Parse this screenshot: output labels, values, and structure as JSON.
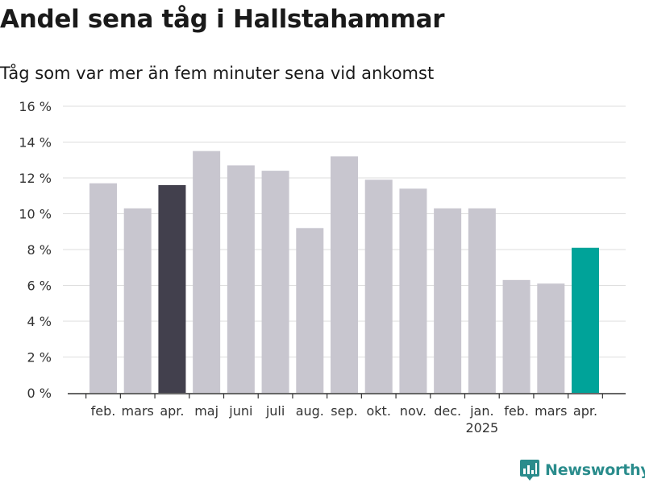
{
  "chart_data": {
    "type": "bar",
    "title": "Andel sena tåg i Hallstahammar",
    "subtitle": "Tåg som var mer än fem minuter sena vid ankomst",
    "xlabel": "",
    "ylabel": "",
    "categories": [
      "feb.",
      "mars",
      "apr.",
      "maj",
      "juni",
      "juli",
      "aug.",
      "sep.",
      "okt.",
      "nov.",
      "dec.",
      "jan.",
      "feb.",
      "mars",
      "apr."
    ],
    "year_label": {
      "text": "2025",
      "under_category_index": 11
    },
    "values": [
      11.7,
      10.3,
      11.6,
      13.5,
      12.7,
      12.4,
      9.2,
      13.2,
      11.9,
      11.4,
      10.3,
      10.3,
      6.3,
      6.1,
      8.1
    ],
    "ylim": [
      0,
      16
    ],
    "y_ticks": [
      0,
      2,
      4,
      6,
      8,
      10,
      12,
      14,
      16
    ],
    "y_tick_suffix": " %",
    "grid": true,
    "colors": {
      "default": "#c8c6cf",
      "highlight_prev_year": "#42404d",
      "highlight_current": "#00a399",
      "grid": "#dddddd",
      "axis": "#333333"
    },
    "highlight_prev_index": 2,
    "highlight_current_index": 14
  },
  "logo": {
    "text": "Newsworthy",
    "icon": "newsworthy-logo-icon"
  }
}
